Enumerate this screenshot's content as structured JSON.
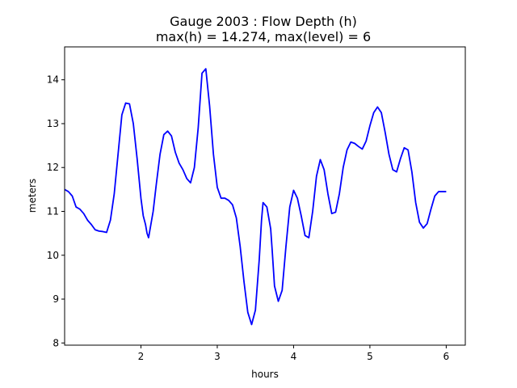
{
  "chart_data": {
    "type": "line",
    "title_line1": "Gauge 2003 : Flow Depth (h)",
    "title_line2": "max(h) =  14.274,    max(level) = 6",
    "xlabel": "hours",
    "ylabel": "meters",
    "xlim": [
      1.0,
      6.25
    ],
    "ylim": [
      7.95,
      14.75
    ],
    "xticks": [
      2,
      3,
      4,
      5,
      6
    ],
    "yticks": [
      8,
      9,
      10,
      11,
      12,
      13,
      14
    ],
    "grid": false,
    "legend": "none",
    "series": [
      {
        "color": "#0000ff",
        "x": [
          1.0,
          1.05,
          1.1,
          1.15,
          1.2,
          1.25,
          1.3,
          1.35,
          1.4,
          1.45,
          1.5,
          1.55,
          1.6,
          1.65,
          1.7,
          1.75,
          1.8,
          1.85,
          1.9,
          1.95,
          2.0,
          2.03,
          2.06,
          2.08,
          2.1,
          2.12,
          2.14,
          2.16,
          2.2,
          2.25,
          2.3,
          2.35,
          2.4,
          2.45,
          2.5,
          2.55,
          2.6,
          2.65,
          2.7,
          2.75,
          2.8,
          2.85,
          2.9,
          2.95,
          3.0,
          3.05,
          3.1,
          3.15,
          3.2,
          3.25,
          3.3,
          3.35,
          3.4,
          3.45,
          3.5,
          3.55,
          3.58,
          3.6,
          3.65,
          3.7,
          3.72,
          3.75,
          3.8,
          3.85,
          3.9,
          3.95,
          4.0,
          4.05,
          4.1,
          4.15,
          4.2,
          4.25,
          4.3,
          4.35,
          4.4,
          4.45,
          4.5,
          4.55,
          4.6,
          4.65,
          4.7,
          4.75,
          4.8,
          4.85,
          4.9,
          4.95,
          5.0,
          5.05,
          5.1,
          5.15,
          5.2,
          5.25,
          5.3,
          5.35,
          5.4,
          5.45,
          5.5,
          5.55,
          5.6,
          5.65,
          5.7,
          5.75,
          5.8,
          5.85,
          5.9,
          5.95,
          6.0
        ],
        "y": [
          11.5,
          11.45,
          11.35,
          11.1,
          11.05,
          10.95,
          10.8,
          10.7,
          10.58,
          10.55,
          10.54,
          10.52,
          10.8,
          11.4,
          12.3,
          13.2,
          13.47,
          13.45,
          13.0,
          12.2,
          11.3,
          10.9,
          10.7,
          10.5,
          10.4,
          10.6,
          10.8,
          11.0,
          11.6,
          12.3,
          12.75,
          12.83,
          12.72,
          12.35,
          12.1,
          11.95,
          11.75,
          11.65,
          12.0,
          12.9,
          14.15,
          14.25,
          13.4,
          12.3,
          11.55,
          11.3,
          11.3,
          11.25,
          11.15,
          10.85,
          10.2,
          9.4,
          8.7,
          8.42,
          8.75,
          9.9,
          10.8,
          11.2,
          11.1,
          10.6,
          10.1,
          9.3,
          8.95,
          9.2,
          10.2,
          11.1,
          11.48,
          11.3,
          10.9,
          10.45,
          10.4,
          11.0,
          11.8,
          12.18,
          11.95,
          11.4,
          10.95,
          10.98,
          11.4,
          12.0,
          12.4,
          12.58,
          12.55,
          12.48,
          12.42,
          12.6,
          12.95,
          13.25,
          13.38,
          13.25,
          12.8,
          12.3,
          11.95,
          11.9,
          12.2,
          12.45,
          12.4,
          11.9,
          11.2,
          10.75,
          10.62,
          10.72,
          11.05,
          11.35,
          11.45,
          11.45,
          11.45
        ]
      }
    ]
  }
}
